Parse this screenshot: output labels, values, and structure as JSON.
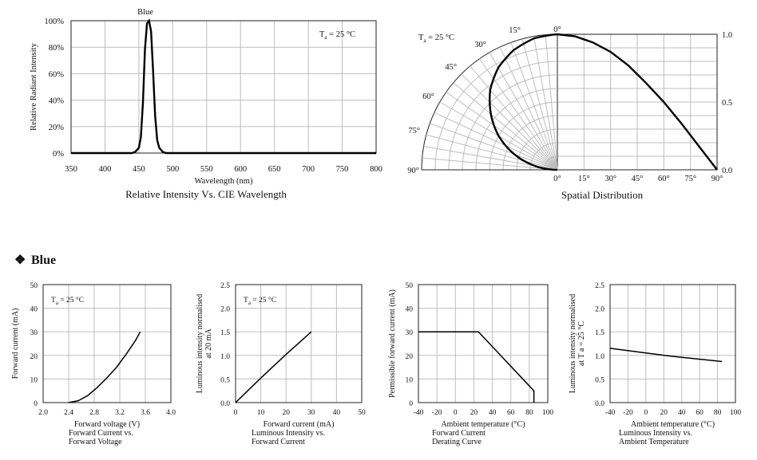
{
  "section": {
    "bullet": "❖",
    "title": "Blue"
  },
  "chart_data": [
    {
      "id": "spectrum",
      "type": "line",
      "title": "Relative Intensity Vs. CIE Wavelength",
      "xlabel": "Wavelength (nm)",
      "ylabel": "Relative Radiant Intensity",
      "series_label": "Blue",
      "annotation": "Ta = 25 °C",
      "xlim": [
        350,
        800
      ],
      "ylim": [
        0,
        100
      ],
      "xticks": [
        "350",
        "400",
        "450",
        "500",
        "550",
        "600",
        "650",
        "700",
        "750",
        "800"
      ],
      "yticks": [
        "0%",
        "20%",
        "40%",
        "60%",
        "80%",
        "100%"
      ],
      "series": [
        {
          "x": [
            350,
            440,
            445,
            450,
            453,
            456,
            459,
            462,
            465,
            468,
            471,
            474,
            477,
            480,
            485,
            490,
            800
          ],
          "y": [
            0,
            0,
            1,
            4,
            12,
            38,
            78,
            98,
            100,
            92,
            62,
            28,
            10,
            4,
            1,
            0,
            0
          ]
        }
      ]
    },
    {
      "id": "spatial",
      "type": "polar",
      "title": "Spatial Distribution",
      "annotation": "Ta = 25 °C",
      "angle_labels": [
        "0°",
        "15°",
        "30°",
        "45°",
        "60°",
        "75°",
        "90°"
      ],
      "xticks": [
        "0°",
        "15°",
        "30°",
        "45°",
        "60°",
        "75°",
        "90°"
      ],
      "yticks": [
        "0.0",
        "0.5",
        "1.0"
      ],
      "series": [
        {
          "angle": [
            0,
            10,
            20,
            30,
            40,
            50,
            60,
            70,
            80,
            90
          ],
          "value": [
            1.0,
            0.985,
            0.94,
            0.87,
            0.77,
            0.64,
            0.5,
            0.34,
            0.17,
            0.0
          ]
        }
      ]
    },
    {
      "id": "iv",
      "type": "line",
      "annotation": "Ta = 25 °C",
      "xlabel": "Forward voltage (V)",
      "ylabel": "Forward current (mA)",
      "caption": [
        "Forward Current vs.",
        "Forward Voltage"
      ],
      "xlim": [
        2.0,
        4.0
      ],
      "ylim": [
        0,
        50
      ],
      "xticks": [
        "2.0",
        "2.4",
        "2.8",
        "3.2",
        "3.6",
        "4.0"
      ],
      "yticks": [
        "0",
        "10",
        "20",
        "30",
        "40",
        "50"
      ],
      "series": [
        {
          "x": [
            2.4,
            2.55,
            2.7,
            2.85,
            3.0,
            3.15,
            3.3,
            3.45,
            3.52
          ],
          "y": [
            0,
            0.8,
            3,
            6.5,
            10.5,
            15,
            20.5,
            26.5,
            30
          ]
        }
      ]
    },
    {
      "id": "lum-current",
      "type": "line",
      "annotation": "Ta = 25 °C",
      "xlabel": "Forward current (mA)",
      "ylabel": [
        "Luminous intensity normalised",
        "at 20 mA"
      ],
      "caption": [
        "Luminous Intensity vs.",
        "Forward Current"
      ],
      "xlim": [
        0,
        50
      ],
      "ylim": [
        0,
        2.5
      ],
      "xticks": [
        "0",
        "10",
        "20",
        "30",
        "40",
        "50"
      ],
      "yticks": [
        "0.0",
        "0.5",
        "1.0",
        "1.5",
        "2.0",
        "2.5"
      ],
      "series": [
        {
          "x": [
            0,
            10,
            20,
            30
          ],
          "y": [
            0,
            0.52,
            1.02,
            1.5
          ]
        }
      ]
    },
    {
      "id": "derating",
      "type": "line",
      "xlabel": "Ambient temperature (°C)",
      "ylabel": "Permissible forward current (mA)",
      "caption": [
        "Forward Current",
        "Derating  Curve"
      ],
      "xlim": [
        -40,
        100
      ],
      "ylim": [
        0,
        50
      ],
      "xticks": [
        "-40",
        "-20",
        "0",
        "20",
        "40",
        "60",
        "80",
        "100"
      ],
      "yticks": [
        "0",
        "10",
        "20",
        "30",
        "40",
        "50"
      ],
      "series": [
        {
          "x": [
            -40,
            25,
            85,
            85
          ],
          "y": [
            30,
            30,
            5,
            0
          ]
        }
      ]
    },
    {
      "id": "lum-temp",
      "type": "line",
      "xlabel": "Ambient temperature (°C)",
      "ylabel": [
        "Luminous intensity normalised",
        "at T a = 25 °C"
      ],
      "caption": [
        "Luminous Intensity vs.",
        "Ambient Temperature"
      ],
      "xlim": [
        -40,
        100
      ],
      "ylim": [
        0,
        2.5
      ],
      "xticks": [
        "-40",
        "-20",
        "0",
        "20",
        "40",
        "60",
        "80",
        "100"
      ],
      "yticks": [
        "0.0",
        "0.5",
        "1.0",
        "1.5",
        "2.0",
        "2.5"
      ],
      "series": [
        {
          "x": [
            -40,
            0,
            25,
            50,
            85
          ],
          "y": [
            1.15,
            1.05,
            0.99,
            0.94,
            0.87
          ]
        }
      ]
    }
  ]
}
